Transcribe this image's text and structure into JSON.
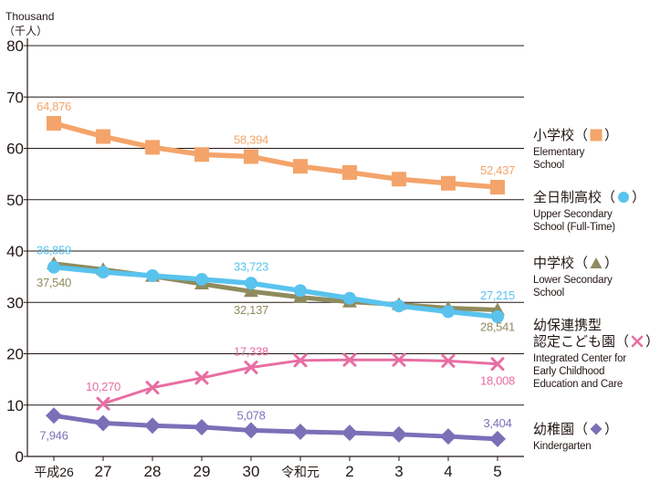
{
  "chart_data": {
    "type": "line",
    "y_unit_en": "Thousand",
    "y_unit_ja": "（千人）",
    "ylim": [
      0,
      80
    ],
    "yticks": [
      0,
      10,
      20,
      30,
      40,
      50,
      60,
      70,
      80
    ],
    "grid": true,
    "legend_position": "right",
    "categories": [
      "平成26",
      "27",
      "28",
      "29",
      "30",
      "令和元",
      "2",
      "3",
      "4",
      "5"
    ],
    "series": [
      {
        "key": "elementary",
        "name_ja": "小学校",
        "name_en": [
          "Elementary",
          "School"
        ],
        "marker": "square",
        "color": "#f4a46a",
        "values": [
          64.876,
          62.3,
          60.2,
          58.8,
          58.394,
          56.5,
          55.3,
          54.0,
          53.2,
          52.437
        ],
        "labels": [
          {
            "i": 0,
            "text": "64,876"
          },
          {
            "i": 4,
            "text": "58,394"
          },
          {
            "i": 9,
            "text": "52,437"
          }
        ]
      },
      {
        "key": "upper_secondary",
        "name_ja": "全日制高校",
        "name_en": [
          "Upper Secondary",
          "School (Full-Time)"
        ],
        "marker": "circle",
        "color": "#59c3ee",
        "values": [
          36.859,
          35.9,
          35.2,
          34.5,
          33.723,
          32.3,
          30.8,
          29.3,
          28.2,
          27.215
        ],
        "labels": [
          {
            "i": 0,
            "text": "36,859"
          },
          {
            "i": 4,
            "text": "33,723"
          },
          {
            "i": 9,
            "text": "27,215"
          }
        ]
      },
      {
        "key": "lower_secondary",
        "name_ja": "中学校",
        "name_en": [
          "Lower Secondary",
          "School"
        ],
        "marker": "triangle",
        "color": "#8f8b5e",
        "values": [
          37.54,
          36.4,
          35.1,
          33.6,
          32.137,
          31.0,
          30.1,
          29.6,
          28.9,
          28.541
        ],
        "labels": [
          {
            "i": 0,
            "text": "37,540"
          },
          {
            "i": 4,
            "text": "32,137"
          },
          {
            "i": 9,
            "text": "28,541"
          }
        ]
      },
      {
        "key": "integrated_center",
        "name_ja_lines": [
          "幼保連携型",
          "認定こども園"
        ],
        "name_en": [
          "Integrated Center for",
          "Early Childhood",
          "Education and Care"
        ],
        "marker": "cross",
        "color": "#e86ea3",
        "values": [
          null,
          10.27,
          13.4,
          15.3,
          17.338,
          18.7,
          18.8,
          18.8,
          18.6,
          18.008
        ],
        "labels": [
          {
            "i": 1,
            "text": "10,270"
          },
          {
            "i": 4,
            "text": "17,338"
          },
          {
            "i": 9,
            "text": "18,008"
          }
        ]
      },
      {
        "key": "kindergarten",
        "name_ja": "幼稚園",
        "name_en": [
          "Kindergarten"
        ],
        "marker": "diamond",
        "color": "#7b70b8",
        "values": [
          7.946,
          6.5,
          6.0,
          5.7,
          5.078,
          4.8,
          4.6,
          4.3,
          3.9,
          3.404
        ],
        "labels": [
          {
            "i": 0,
            "text": "7,946"
          },
          {
            "i": 4,
            "text": "5,078"
          },
          {
            "i": 9,
            "text": "3,404"
          }
        ]
      }
    ]
  }
}
